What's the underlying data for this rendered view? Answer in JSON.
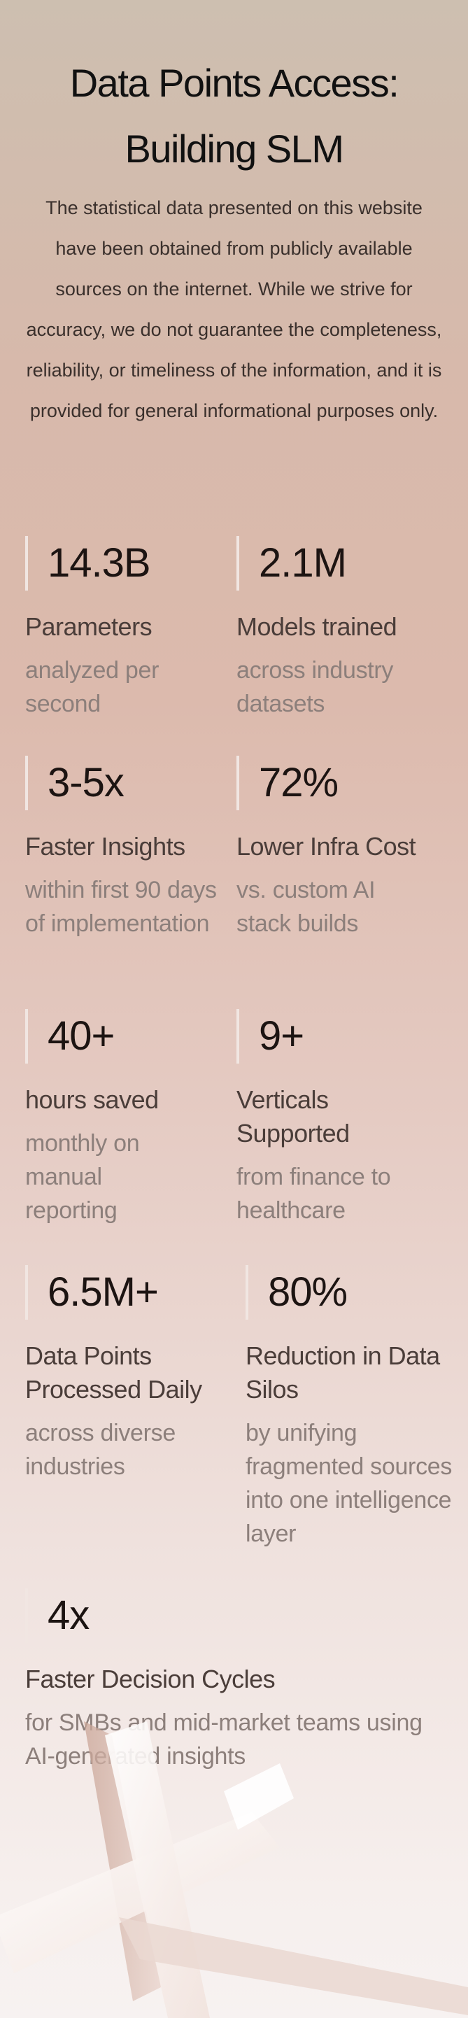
{
  "title": {
    "line1": "Data Points Access:",
    "line2": "Building SLM"
  },
  "disclaimer": "The statistical data presented on this website have been obtained from publicly available sources on the internet. While we strive for accuracy, we do not guarantee the completeness, reliability, or timeliness of the information, and it is provided for general informational purposes only.",
  "stats": [
    {
      "value": "14.3B",
      "label": "Parameters",
      "desc": "analyzed per second"
    },
    {
      "value": "2.1M",
      "label": "Models trained",
      "desc": "across industry datasets"
    },
    {
      "value": "3-5x",
      "label": "Faster Insights",
      "desc": "within first 90 days of implementation"
    },
    {
      "value": "72%",
      "label": "Lower Infra Cost",
      "desc": "vs. custom AI stack builds"
    },
    {
      "value": "40+",
      "label": "hours saved",
      "desc": "monthly on manual reporting"
    },
    {
      "value": "9+",
      "label": "Verticals Supported",
      "desc": "from finance to healthcare"
    },
    {
      "value": "6.5M+",
      "label": "Data Points Processed Daily",
      "desc": "across diverse industries"
    },
    {
      "value": "80%",
      "label": "Reduction in Data Silos",
      "desc": "by unifying fragmented sources into one intelligence layer"
    },
    {
      "value": "4x",
      "label": "Faster Decision Cycles",
      "desc": "for SMBs and mid-market teams using AI-generated insights"
    }
  ]
}
